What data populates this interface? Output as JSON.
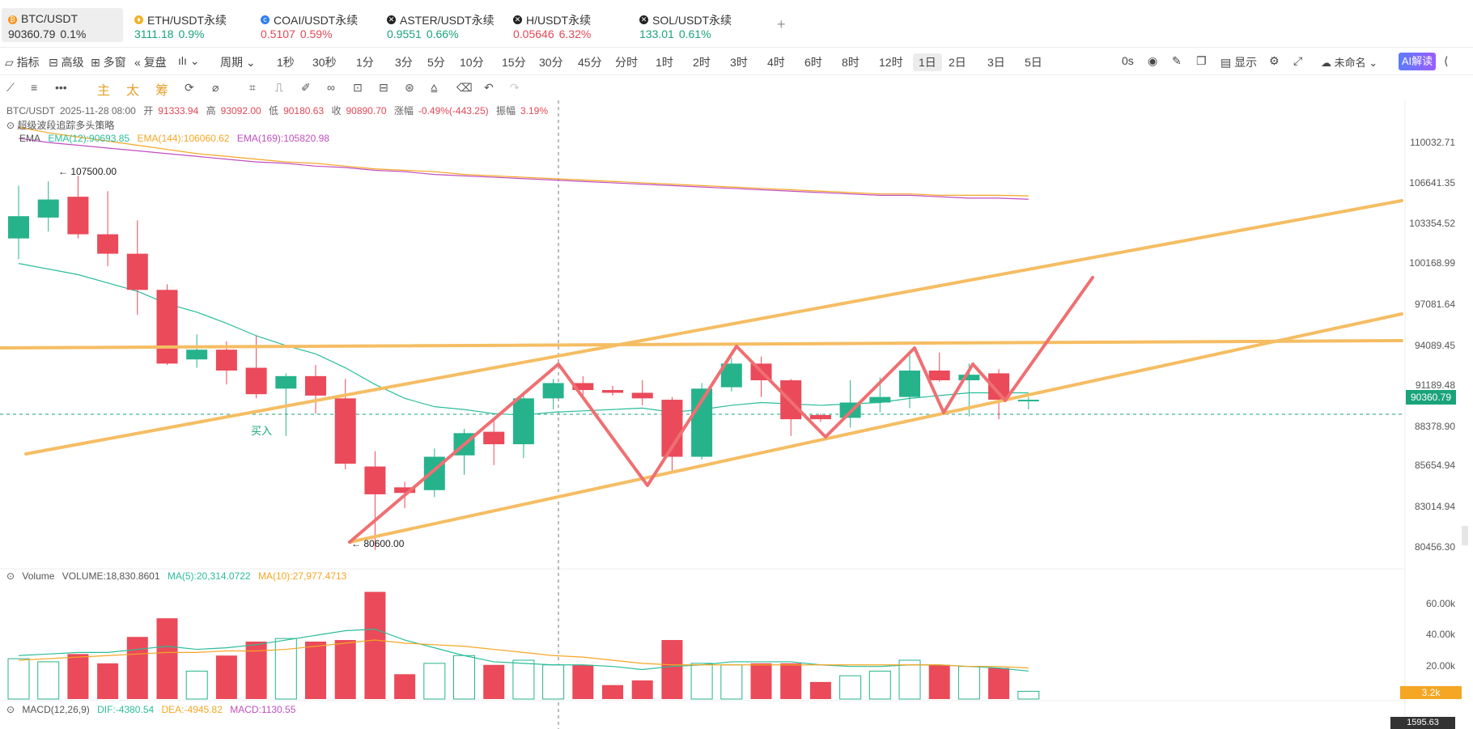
{
  "tabs": [
    {
      "name": "BTC/USDT",
      "price": "90360.79",
      "change": "0.1%",
      "dir": "down",
      "coin_color": "#f7931a",
      "coin_glyph": "₿"
    },
    {
      "name": "ETH/USDT永续",
      "price": "3111.18",
      "change": "0.9%",
      "dir": "up",
      "coin_color": "#f0b429",
      "coin_glyph": "♦"
    },
    {
      "name": "COAI/USDT永续",
      "price": "0.5107",
      "change": "0.59%",
      "dir": "down",
      "coin_color": "#2f80ed",
      "coin_glyph": "c"
    },
    {
      "name": "ASTER/USDT永续",
      "price": "0.9551",
      "change": "0.66%",
      "dir": "up",
      "coin_color": "#222222",
      "coin_glyph": "✕"
    },
    {
      "name": "H/USDT永续",
      "price": "0.05646",
      "change": "6.32%",
      "dir": "down",
      "coin_color": "#222222",
      "coin_glyph": "✕"
    },
    {
      "name": "SOL/USDT永续",
      "price": "133.01",
      "change": "0.61%",
      "dir": "up",
      "coin_color": "#222222",
      "coin_glyph": "✕"
    }
  ],
  "add_tab_glyph": "+",
  "toolbar": {
    "indicator": "指标",
    "advanced": "高级",
    "multi": "多窗",
    "replay": "复盘",
    "period": "周期",
    "intervals": [
      "1秒",
      "30秒",
      "1分",
      "3分",
      "5分",
      "10分",
      "15分",
      "30分",
      "45分",
      "分时",
      "1时",
      "2时",
      "3时",
      "4时",
      "6时",
      "8时",
      "12时",
      "1日",
      "2日",
      "3日",
      "5日"
    ],
    "selected_interval": "1日",
    "countdown": "0s",
    "display": "显示",
    "unnamed": "未命名",
    "ai": "AI解读"
  },
  "drawbar": {
    "zhu": "主",
    "tai": "太",
    "chou": "筹"
  },
  "ohlc": {
    "symbol": "BTC/USDT",
    "date": "2025-11-28 08:00",
    "open_label": "开",
    "open": "91333.94",
    "high_label": "高",
    "high": "93092.00",
    "low_label": "低",
    "low": "90180.63",
    "close_label": "收",
    "close": "90890.70",
    "chg_label": "涨幅",
    "chg": "-0.49%(-443.25)",
    "amp_label": "振幅",
    "amp": "3.19%"
  },
  "strategy_label": "超级波段追踪多头策略",
  "ema": {
    "label": "EMA",
    "ema12": "EMA(12):90693.85",
    "ema144": "EMA(144):106060.62",
    "ema169": "EMA(169):105820.98",
    "color12": "#2bbd9a",
    "color144": "#f5a623",
    "color169": "#c04fc0"
  },
  "price_axis": [
    "110032.71",
    "106641.35",
    "103354.52",
    "100168.99",
    "97081.64",
    "94089.45",
    "91189.48",
    "88378.90",
    "85654.94",
    "83014.94",
    "80456.30"
  ],
  "current_price": "90360.79",
  "high_mark": "107500.00",
  "low_mark": "80600.00",
  "buy_label": "买入",
  "volume": {
    "label": "Volume",
    "value": "VOLUME:18,830.8601",
    "ma5": "MA(5):20,314.0722",
    "ma10": "MA(10):27,977.4713"
  },
  "volume_axis": [
    "60.00k",
    "40.00k",
    "20.00k"
  ],
  "volume_tag": "3.2k",
  "macd": {
    "label": "MACD(12,26,9)",
    "dif": "DIF:-4380.54",
    "dea": "DEA:-4945.82",
    "macd": "MACD:1130.55"
  },
  "macd_axis_tag": "1595.63",
  "colors": {
    "up": "#26b38c",
    "down": "#ea4a5a",
    "trend": "#f5bd63",
    "pattern": "#ef6f72"
  },
  "chart_data": {
    "type": "candlestick",
    "candles": [
      {
        "o": 103000,
        "h": 106800,
        "l": 101500,
        "c": 104600
      },
      {
        "o": 104500,
        "h": 107100,
        "l": 103500,
        "c": 105800
      },
      {
        "o": 106000,
        "h": 107500,
        "l": 103000,
        "c": 103300
      },
      {
        "o": 103300,
        "h": 106400,
        "l": 101000,
        "c": 101900
      },
      {
        "o": 101900,
        "h": 104300,
        "l": 97500,
        "c": 99300
      },
      {
        "o": 99300,
        "h": 99700,
        "l": 93900,
        "c": 94000
      },
      {
        "o": 94300,
        "h": 96100,
        "l": 93700,
        "c": 95000
      },
      {
        "o": 95000,
        "h": 95600,
        "l": 92500,
        "c": 93500
      },
      {
        "o": 93700,
        "h": 96000,
        "l": 91500,
        "c": 91800
      },
      {
        "o": 92200,
        "h": 93300,
        "l": 88800,
        "c": 93100
      },
      {
        "o": 93100,
        "h": 93900,
        "l": 90400,
        "c": 91700
      },
      {
        "o": 91500,
        "h": 92900,
        "l": 86400,
        "c": 86800
      },
      {
        "o": 86600,
        "h": 87700,
        "l": 80600,
        "c": 84600
      },
      {
        "o": 85100,
        "h": 85500,
        "l": 83600,
        "c": 84700
      },
      {
        "o": 84900,
        "h": 87900,
        "l": 84400,
        "c": 87300
      },
      {
        "o": 87400,
        "h": 89300,
        "l": 86000,
        "c": 89000
      },
      {
        "o": 89100,
        "h": 90000,
        "l": 86700,
        "c": 88200
      },
      {
        "o": 88200,
        "h": 92000,
        "l": 87200,
        "c": 91500
      },
      {
        "o": 91500,
        "h": 92900,
        "l": 90700,
        "c": 92600
      },
      {
        "o": 92600,
        "h": 93100,
        "l": 91700,
        "c": 92100
      },
      {
        "o": 92100,
        "h": 92400,
        "l": 91700,
        "c": 91900
      },
      {
        "o": 91900,
        "h": 92800,
        "l": 91000,
        "c": 91500
      },
      {
        "o": 91400,
        "h": 91600,
        "l": 86100,
        "c": 87300
      },
      {
        "o": 87300,
        "h": 92600,
        "l": 87100,
        "c": 92200
      },
      {
        "o": 92300,
        "h": 94400,
        "l": 92000,
        "c": 94000
      },
      {
        "o": 94000,
        "h": 94500,
        "l": 91600,
        "c": 92800
      },
      {
        "o": 92800,
        "h": 92900,
        "l": 88800,
        "c": 90000
      },
      {
        "o": 90300,
        "h": 90400,
        "l": 89800,
        "c": 90000
      },
      {
        "o": 90100,
        "h": 92800,
        "l": 89400,
        "c": 91200
      },
      {
        "o": 91200,
        "h": 93000,
        "l": 90500,
        "c": 91600
      },
      {
        "o": 91600,
        "h": 94800,
        "l": 90800,
        "c": 93500
      },
      {
        "o": 93500,
        "h": 94800,
        "l": 92700,
        "c": 92800
      },
      {
        "o": 92800,
        "h": 94000,
        "l": 90200,
        "c": 93200
      },
      {
        "o": 93300,
        "h": 93600,
        "l": 90000,
        "c": 91400
      },
      {
        "o": 91300,
        "h": 91600,
        "l": 90700,
        "c": 91400
      }
    ],
    "volumes": [
      26000,
      24000,
      29000,
      23000,
      40000,
      52000,
      18000,
      28000,
      37000,
      39000,
      37000,
      38000,
      69000,
      16000,
      23000,
      28000,
      22000,
      25000,
      22000,
      22000,
      9000,
      12000,
      38000,
      23000,
      22000,
      23000,
      23000,
      11000,
      15000,
      18000,
      25000,
      22000,
      21000,
      20000,
      5000
    ],
    "ema12": [
      101200,
      100800,
      100400,
      99800,
      99200,
      98300,
      97700,
      96900,
      96000,
      95300,
      94700,
      93700,
      92500,
      91500,
      90900,
      90700,
      90400,
      90300,
      90500,
      90600,
      90700,
      90800,
      90500,
      90700,
      91000,
      91200,
      91100,
      91000,
      91100,
      91200,
      91500,
      91700,
      91900,
      91900,
      91900
    ],
    "ema144": [
      111000,
      110600,
      110300,
      110000,
      109700,
      109400,
      109100,
      108900,
      108700,
      108500,
      108400,
      108200,
      108000,
      107900,
      107800,
      107600,
      107500,
      107400,
      107300,
      107200,
      107100,
      107000,
      106900,
      106800,
      106700,
      106600,
      106500,
      106400,
      106300,
      106200,
      106200,
      106100,
      106100,
      106100,
      106060
    ],
    "ema169": [
      110200,
      109900,
      109700,
      109500,
      109300,
      109100,
      108900,
      108700,
      108500,
      108400,
      108200,
      108100,
      107900,
      107800,
      107600,
      107500,
      107400,
      107300,
      107200,
      107100,
      107000,
      106900,
      106800,
      106700,
      106600,
      106500,
      106400,
      106300,
      106200,
      106100,
      106100,
      106000,
      105900,
      105900,
      105820
    ],
    "ylim": [
      80000,
      112000
    ]
  }
}
